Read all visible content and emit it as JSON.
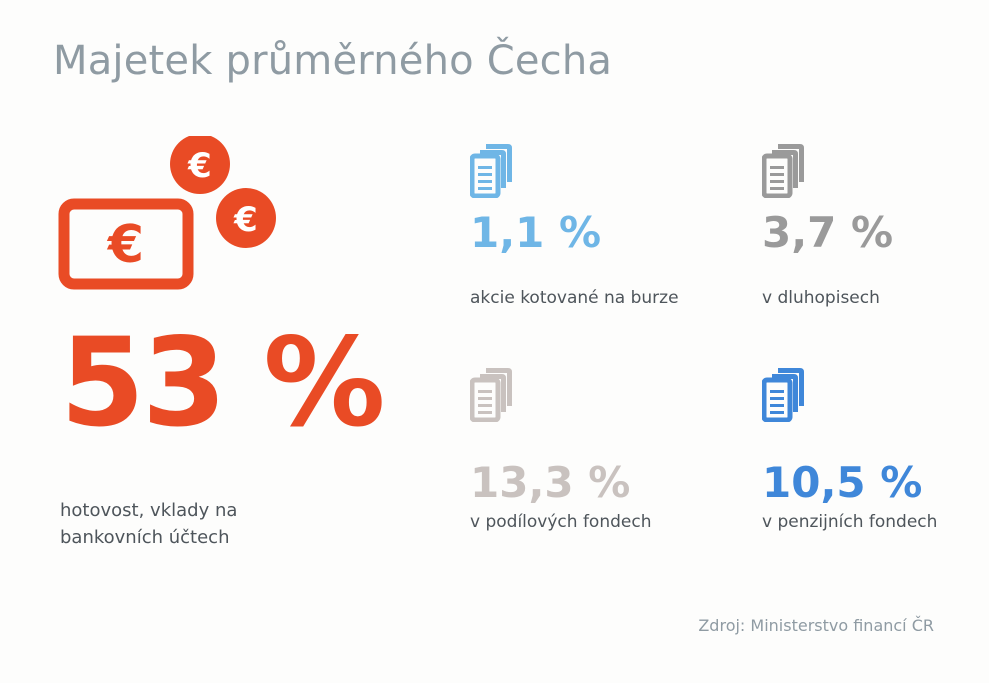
{
  "title": "Majetek průměrného Čecha",
  "chart_data": {
    "type": "table",
    "title": "Majetek průměrného Čecha",
    "items": [
      {
        "value": 53,
        "value_label": "53 %",
        "label": "hotovost, vklady na bankovních účtech",
        "color": "#e94b25",
        "icon": "cash-euro-icon"
      },
      {
        "value": 1.1,
        "value_label": "1,1 %",
        "label": "akcie kotované na burze",
        "color": "#6fb6e6",
        "icon": "document-stack-icon"
      },
      {
        "value": 3.7,
        "value_label": "3,7 %",
        "label": "v dluhopisech",
        "color": "#9a9a9a",
        "icon": "document-stack-icon"
      },
      {
        "value": 13.3,
        "value_label": "13,3 %",
        "label": "v podílových fondech",
        "color": "#c9c2bf",
        "icon": "document-stack-icon"
      },
      {
        "value": 10.5,
        "value_label": "10,5 %",
        "label": "v penzijních fondech",
        "color": "#3f87d9",
        "icon": "document-stack-icon"
      }
    ],
    "source": "Zdroj: Ministerstvo financí ČR"
  },
  "icons": {
    "money": "cash-euro-icon",
    "coin": "euro-coin-icon",
    "document": "document-stack-icon",
    "euro_symbol": "€"
  }
}
